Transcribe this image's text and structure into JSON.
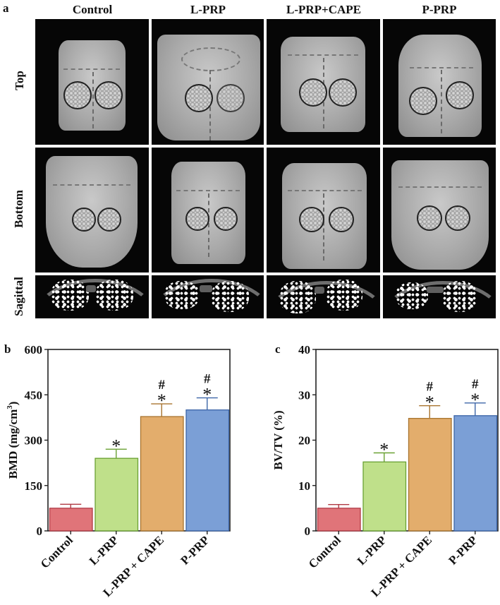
{
  "figure": {
    "panel_a": {
      "letter": "a",
      "columns": [
        "Control",
        "L-PRP",
        "L-PRP+CAPE",
        "P-PRP"
      ],
      "rows": [
        "Top",
        "Bottom",
        "Sagittal"
      ]
    },
    "panel_b": {
      "letter": "b"
    },
    "panel_c": {
      "letter": "c"
    }
  },
  "chart_data": [
    {
      "type": "bar",
      "panel": "b",
      "title": "",
      "xlabel": "",
      "ylabel": "BMD (mg/cm³)",
      "ylabel_main": "BMD (mg/cm",
      "ylabel_sup": "3",
      "ylabel_close": ")",
      "categories": [
        "Control",
        "L-PRP",
        "L-PRP + CAPE",
        "P-PRP"
      ],
      "values": [
        75,
        240,
        378,
        400
      ],
      "error_upper": [
        88,
        270,
        420,
        440
      ],
      "ylim": [
        0,
        600
      ],
      "yticks": [
        "0",
        "150",
        "300",
        "450",
        "600"
      ],
      "ytick_values": [
        0,
        150,
        300,
        450,
        600
      ],
      "annotations": [
        "",
        "*",
        "#\n*",
        "#\n*"
      ],
      "colors": [
        "#e07479",
        "#bfe08a",
        "#e3ad6c",
        "#7b9fd6"
      ],
      "edge_colors": [
        "#b03a44",
        "#6aa133",
        "#a8742f",
        "#3d66a8"
      ],
      "grid": false,
      "legend": "none"
    },
    {
      "type": "bar",
      "panel": "c",
      "title": "",
      "xlabel": "",
      "ylabel": "BV/TV (%)",
      "categories": [
        "Control",
        "L-PRP",
        "L-PRP + CAPE",
        "P-PRP"
      ],
      "values": [
        5.0,
        15.2,
        24.8,
        25.4
      ],
      "error_upper": [
        5.8,
        17.2,
        27.6,
        28.2
      ],
      "ylim": [
        0,
        40
      ],
      "yticks": [
        "0",
        "10",
        "20",
        "30",
        "40"
      ],
      "ytick_values": [
        0,
        10,
        20,
        30,
        40
      ],
      "annotations": [
        "",
        "*",
        "#\n*",
        "#\n*"
      ],
      "colors": [
        "#e07479",
        "#bfe08a",
        "#e3ad6c",
        "#7b9fd6"
      ],
      "edge_colors": [
        "#b03a44",
        "#6aa133",
        "#a8742f",
        "#3d66a8"
      ],
      "grid": false,
      "legend": "none"
    }
  ],
  "markers": {
    "star": "*",
    "hash": "#"
  }
}
